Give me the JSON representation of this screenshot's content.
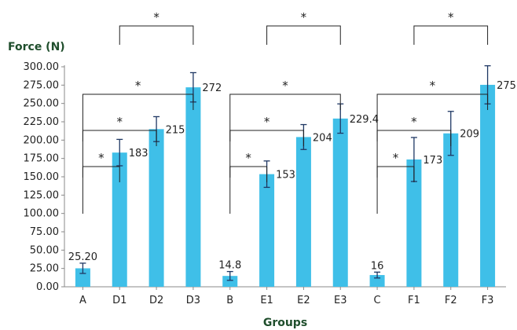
{
  "chart_data": {
    "type": "bar",
    "ylabel": "Force (N)",
    "xlabel": "Groups",
    "ylim": [
      0,
      300
    ],
    "yticks": [
      0,
      25,
      50,
      75,
      100,
      125,
      150,
      175,
      200,
      225,
      250,
      275,
      300
    ],
    "ytick_labels": [
      "0.00",
      "25.00",
      "50.00",
      "75.00",
      "100.00",
      "125.00",
      "150.00",
      "175.00",
      "200.00",
      "225.00",
      "250.00",
      "275.00",
      "300.00"
    ],
    "categories": [
      "A",
      "D1",
      "D2",
      "D3",
      "B",
      "E1",
      "E2",
      "E3",
      "C",
      "F1",
      "F2",
      "F3"
    ],
    "values": [
      25.2,
      183,
      215,
      272,
      14.8,
      153.6,
      204.2,
      229.4,
      16,
      173.6,
      209.2,
      275.4
    ],
    "errors": [
      7,
      18,
      17,
      20,
      6,
      18,
      17,
      20,
      4,
      30,
      30,
      26
    ],
    "data_labels": [
      "25.20",
      "183",
      "215",
      "272",
      "14.8",
      "153.6",
      "204.2",
      "229.4",
      "16",
      "173.6",
      "209.2",
      "275.4"
    ],
    "bar_color": "#3fbfe8",
    "error_bar_color": "#1f3864",
    "grid": false,
    "legend": "none",
    "significance": [
      {
        "from": "A",
        "to": "D1",
        "label": "*"
      },
      {
        "from": "A",
        "to": "D2",
        "label": "*"
      },
      {
        "from": "A",
        "to": "D3",
        "label": "*"
      },
      {
        "from": "D1",
        "to": "D3",
        "label": "*"
      },
      {
        "from": "B",
        "to": "E1",
        "label": "*"
      },
      {
        "from": "B",
        "to": "E2",
        "label": "*"
      },
      {
        "from": "B",
        "to": "E3",
        "label": "*"
      },
      {
        "from": "E1",
        "to": "E3",
        "label": "*"
      },
      {
        "from": "C",
        "to": "F1",
        "label": "*"
      },
      {
        "from": "C",
        "to": "F2",
        "label": "*"
      },
      {
        "from": "C",
        "to": "F3",
        "label": "*"
      },
      {
        "from": "F1",
        "to": "F3",
        "label": "*"
      }
    ]
  }
}
